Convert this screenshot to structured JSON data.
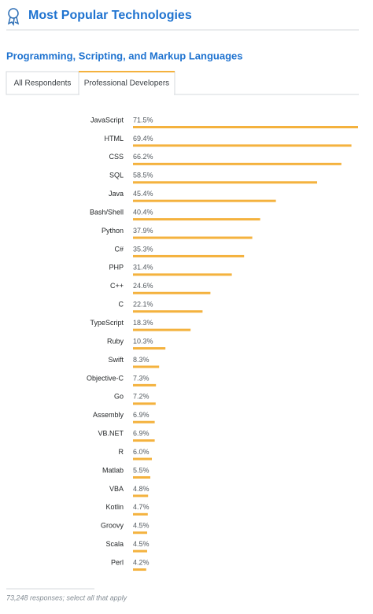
{
  "header": {
    "title": "Most Popular Technologies"
  },
  "tabs": [
    "All Respondents",
    "Professional Developers"
  ],
  "active_tab": 1,
  "chart_data": {
    "type": "bar",
    "orientation": "horizontal",
    "title": "Programming, Scripting, and Markup Languages",
    "categories": [
      "JavaScript",
      "HTML",
      "CSS",
      "SQL",
      "Java",
      "Bash/Shell",
      "Python",
      "C#",
      "PHP",
      "C++",
      "C",
      "TypeScript",
      "Ruby",
      "Swift",
      "Objective-C",
      "Go",
      "Assembly",
      "VB.NET",
      "R",
      "Matlab",
      "VBA",
      "Kotlin",
      "Groovy",
      "Scala",
      "Perl"
    ],
    "values": [
      71.5,
      69.4,
      66.2,
      58.5,
      45.4,
      40.4,
      37.9,
      35.3,
      31.4,
      24.6,
      22.1,
      18.3,
      10.3,
      8.3,
      7.3,
      7.2,
      6.9,
      6.9,
      6.0,
      5.5,
      4.8,
      4.7,
      4.5,
      4.5,
      4.2
    ],
    "value_labels": [
      "71.5%",
      "69.4%",
      "66.2%",
      "58.5%",
      "45.4%",
      "40.4%",
      "37.9%",
      "35.3%",
      "31.4%",
      "24.6%",
      "22.1%",
      "18.3%",
      "10.3%",
      "8.3%",
      "7.3%",
      "7.2%",
      "6.9%",
      "6.9%",
      "6.0%",
      "5.5%",
      "4.8%",
      "4.7%",
      "4.5%",
      "4.5%",
      "4.2%"
    ],
    "color": "#f4b23e"
  },
  "footnote": "73,248 responses; select all that apply"
}
